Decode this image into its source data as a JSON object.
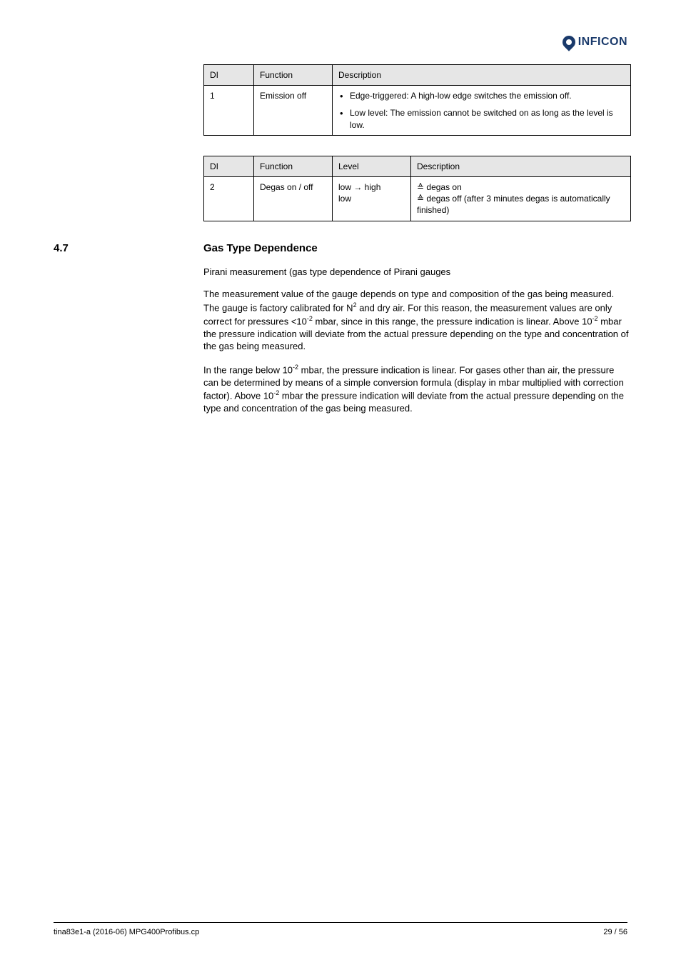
{
  "logo": {
    "brand": "INFICON"
  },
  "table1": {
    "headers": {
      "col1": "DI",
      "col2": "Function",
      "col3": "Description"
    },
    "row": {
      "di": "1",
      "fn": "Emission off",
      "bullet1": "Edge-triggered: A high-low edge switches the emission off.",
      "bullet2": "Low level: The emission cannot be switched on as long as the level is low."
    }
  },
  "table2": {
    "headers": {
      "col1": "DI",
      "col2": "Function",
      "col3": "Level",
      "col4": "Description"
    },
    "row": {
      "di": "2",
      "fn": "Degas on / off",
      "level": "low → high",
      "d1_pre": "≙",
      "d1_txt": " degas on",
      "d2_pre": "≙",
      "d2_txt": " degas off (after 3 minutes degas is automatically finished)",
      "level2": "low"
    }
  },
  "section": {
    "num": "4.7",
    "title": "Gas Type Dependence"
  },
  "p1_a": "Pirani measurement (gas type dependence of Pirani gauges",
  "p1_b": "The measurement value of the gauge depends on type and composition of the gas being measured. The gauge is factory calibrated for N",
  "p1_sub1": "2",
  "p1_c": " and dry air. For this reason, the measurement values are only correct for pressures <10",
  "p1_exp1": "-2",
  "p1_d": " mbar, since in this range, the pressure indication is linear. Above 10",
  "p1_exp2": "-2",
  "p1_e": " mbar the pressure indication will deviate from the actual pressure depending on the type and concentration of the gas being measured.",
  "p2_a": "In the range below 10",
  "p2_exp1": "-2",
  "p2_b": " mbar, the pressure indication is linear. For gases other than air, the pressure can be determined by means of a simple conversion formula (display in mbar multiplied with correction factor). Above 10",
  "p2_exp2": "-2",
  "p2_c": " mbar the pressure indication will deviate from the actual pressure depending on the type and concentration of the gas being measured.",
  "footer": {
    "left": "tina83e1-a (2016-06)   MPG400Profibus.cp",
    "right": "29 / 56"
  },
  "colors": {
    "header_bg": "#e6e6e6",
    "border": "#000000",
    "text": "#000000",
    "logo": "#1a3a6b",
    "background": "#ffffff"
  },
  "fonts": {
    "body_size": 13,
    "table_size": 12,
    "heading_size": 15,
    "footer_size": 11
  }
}
